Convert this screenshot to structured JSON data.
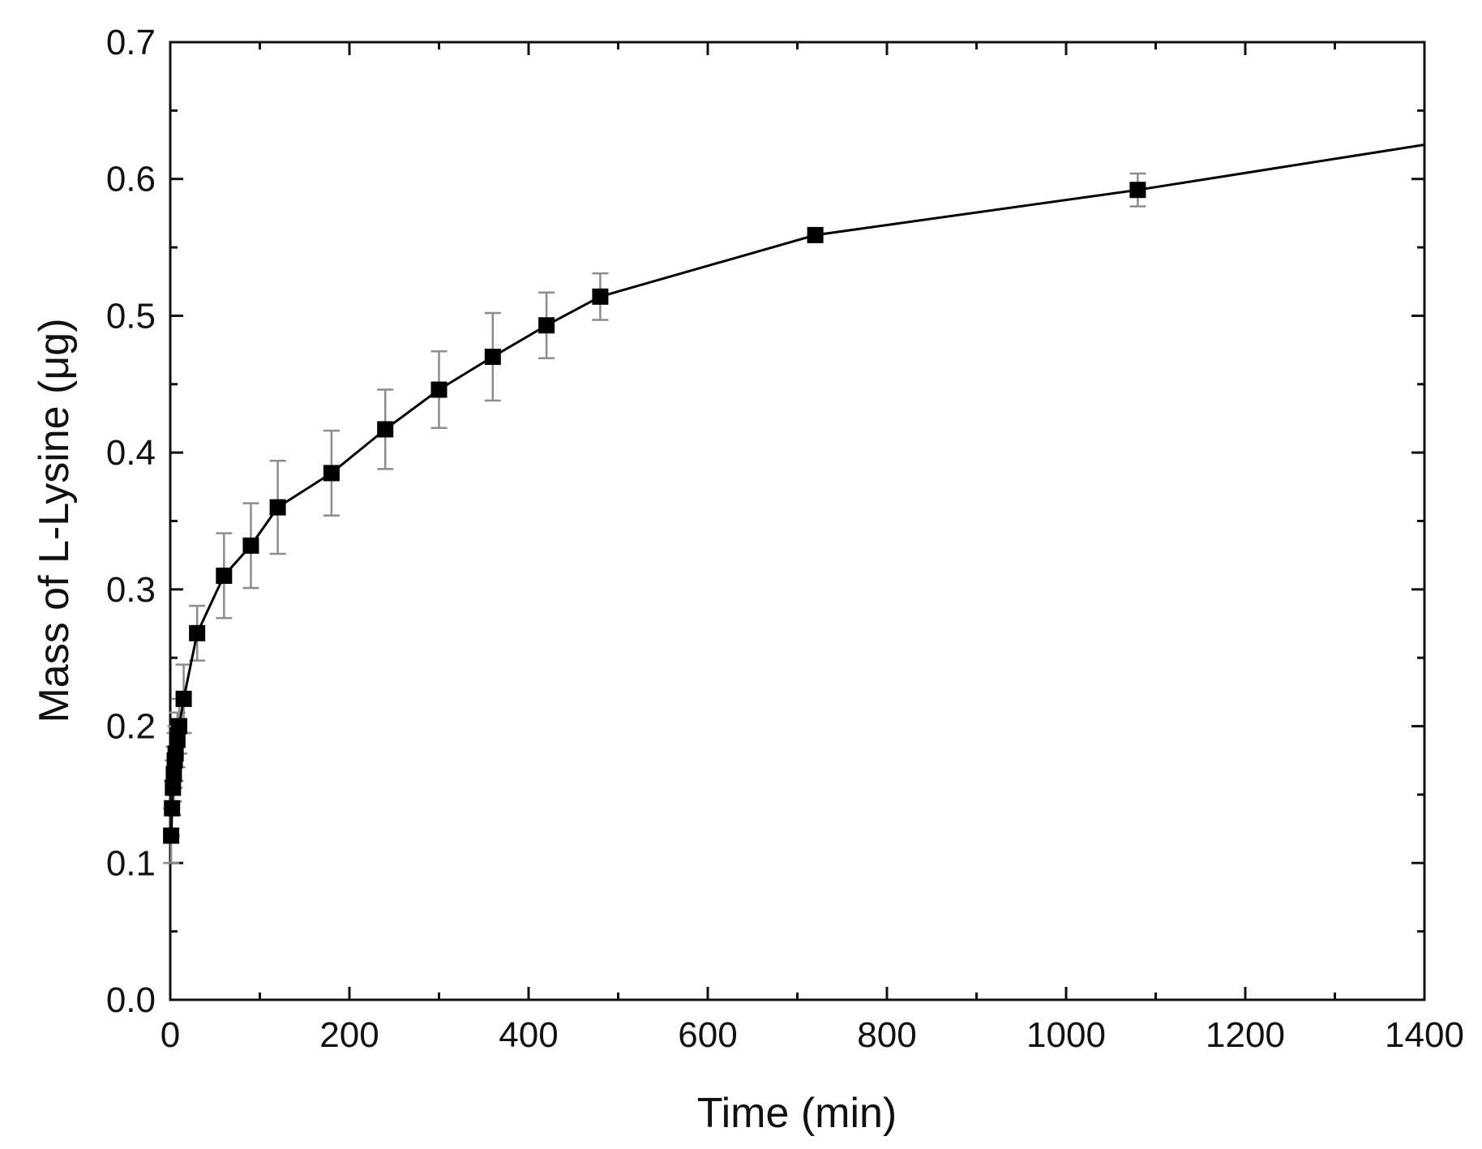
{
  "chart_data": {
    "type": "line",
    "title": "",
    "xlabel": "Time (min)",
    "ylabel": "Mass of L-Lysine (μg)",
    "xlim": [
      0,
      1400
    ],
    "ylim": [
      0,
      0.7
    ],
    "x_ticks": [
      0,
      200,
      400,
      600,
      800,
      1000,
      1200,
      1400
    ],
    "x_tick_labels": [
      "0",
      "200",
      "400",
      "600",
      "800",
      "1000",
      "1200",
      "1400"
    ],
    "y_ticks": [
      0.0,
      0.1,
      0.2,
      0.3,
      0.4,
      0.5,
      0.6,
      0.7
    ],
    "y_tick_labels": [
      "0.0",
      "0.1",
      "0.2",
      "0.3",
      "0.4",
      "0.5",
      "0.6",
      "0.7"
    ],
    "grid": false,
    "legend": "none",
    "line_color": "#000000",
    "marker": "square",
    "errorbar_color": "#8c8c8c",
    "line_end": [
      1400,
      0.625
    ],
    "series": [
      {
        "x": [
          1,
          2,
          3,
          4,
          5,
          6,
          8,
          10,
          15,
          30,
          60,
          90,
          120,
          180,
          240,
          300,
          360,
          420,
          480,
          720,
          1080
        ],
        "y": [
          0.12,
          0.14,
          0.155,
          0.165,
          0.175,
          0.18,
          0.19,
          0.2,
          0.22,
          0.268,
          0.31,
          0.332,
          0.36,
          0.385,
          0.417,
          0.446,
          0.47,
          0.493,
          0.514,
          0.559,
          0.592
        ],
        "yerr": [
          0.02,
          0.02,
          0.02,
          0.02,
          0.02,
          0.02,
          0.02,
          0.02,
          0.025,
          0.02,
          0.031,
          0.031,
          0.034,
          0.031,
          0.029,
          0.028,
          0.032,
          0.024,
          0.017,
          0.004,
          0.012
        ]
      }
    ]
  }
}
